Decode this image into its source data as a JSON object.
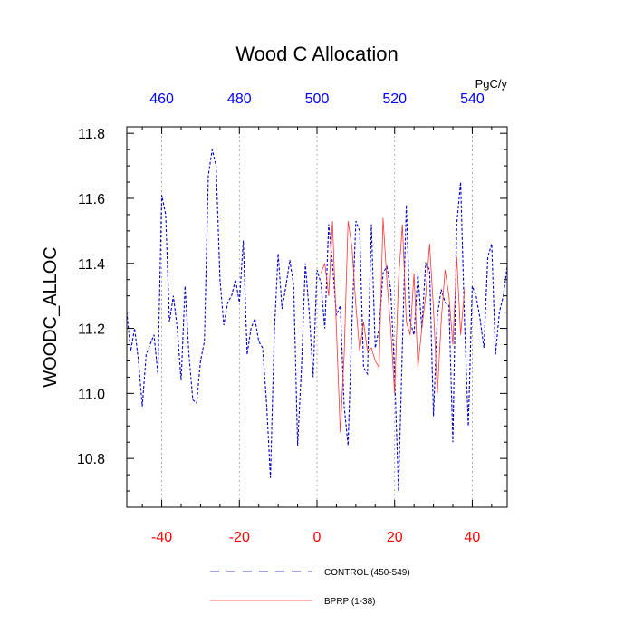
{
  "chart_data": {
    "type": "line",
    "title": "Wood C Allocation",
    "ylabel": "WOODC_ALLOC",
    "top_axis_units": "PgC/y",
    "xlim": [
      -49,
      49
    ],
    "ylim": [
      10.65,
      11.82
    ],
    "bottom_ticks": [
      -40,
      -20,
      0,
      20,
      40
    ],
    "top_ticks": [
      {
        "value": -40,
        "label": "460"
      },
      {
        "value": -20,
        "label": "480"
      },
      {
        "value": 0,
        "label": "500"
      },
      {
        "value": 20,
        "label": "520"
      },
      {
        "value": 40,
        "label": "540"
      }
    ],
    "y_ticks": [
      {
        "value": 10.8,
        "label": "10.8"
      },
      {
        "value": 11.0,
        "label": "11.0"
      },
      {
        "value": 11.2,
        "label": "11.2"
      },
      {
        "value": 11.4,
        "label": "11.4"
      },
      {
        "value": 11.6,
        "label": "11.6"
      },
      {
        "value": 11.8,
        "label": "11.8"
      }
    ],
    "vertical_grid": [
      -40,
      -20,
      0,
      20,
      40
    ],
    "bottom_tick_color": "#ff0000",
    "top_tick_color": "#0000ff",
    "series": [
      {
        "name": "CONTROL (450-549)",
        "color": "#0000cc",
        "dash": "3,2",
        "x": [
          -49,
          -48,
          -47,
          -46,
          -45,
          -44,
          -43,
          -42,
          -41,
          -40,
          -39,
          -38,
          -37,
          -36,
          -35,
          -34,
          -33,
          -32,
          -31,
          -30,
          -29,
          -28,
          -27,
          -26,
          -25,
          -24,
          -23,
          -22,
          -21,
          -20,
          -19,
          -18,
          -17,
          -16,
          -15,
          -14,
          -13,
          -12,
          -11,
          -10,
          -9,
          -8,
          -7,
          -6,
          -5,
          -4,
          -3,
          -2,
          -1,
          0,
          1,
          2,
          3,
          4,
          5,
          6,
          7,
          8,
          9,
          10,
          11,
          12,
          13,
          14,
          15,
          16,
          17,
          18,
          19,
          20,
          21,
          22,
          23,
          24,
          25,
          26,
          27,
          28,
          29,
          30,
          31,
          32,
          33,
          34,
          35,
          36,
          37,
          38,
          39,
          40,
          41,
          42,
          43,
          44,
          45,
          46,
          47,
          48,
          49
        ],
        "values": [
          11.25,
          11.13,
          11.2,
          11.1,
          10.96,
          11.12,
          11.15,
          11.18,
          11.06,
          11.61,
          11.55,
          11.22,
          11.3,
          11.2,
          11.04,
          11.33,
          11.12,
          10.98,
          10.97,
          11.1,
          11.16,
          11.67,
          11.75,
          11.7,
          11.35,
          11.21,
          11.28,
          11.3,
          11.35,
          11.28,
          11.47,
          11.12,
          11.2,
          11.23,
          11.16,
          11.14,
          10.97,
          10.74,
          11.19,
          11.43,
          11.26,
          11.33,
          11.41,
          11.33,
          10.84,
          11.08,
          11.4,
          11.25,
          11.05,
          11.38,
          11.34,
          11.2,
          11.52,
          11.4,
          11.24,
          11.27,
          10.96,
          10.84,
          11.22,
          11.53,
          11.5,
          11.08,
          11.06,
          11.52,
          11.14,
          11.2,
          11.37,
          11.39,
          11.32,
          11.06,
          10.7,
          11.15,
          11.58,
          11.22,
          11.18,
          11.37,
          11.2,
          11.4,
          11.38,
          10.93,
          11.24,
          11.32,
          11.28,
          11.27,
          10.85,
          11.52,
          11.65,
          11.22,
          10.9,
          11.33,
          11.3,
          11.23,
          11.14,
          11.42,
          11.46,
          11.12,
          11.25,
          11.3,
          11.39
        ]
      },
      {
        "name": "BPRP (1-38)",
        "color": "#ff3333",
        "dash": "",
        "x": [
          1,
          2,
          3,
          4,
          5,
          6,
          7,
          8,
          9,
          10,
          11,
          12,
          13,
          14,
          15,
          16,
          17,
          18,
          19,
          20,
          21,
          22,
          23,
          24,
          25,
          26,
          27,
          28,
          29,
          30,
          31,
          32,
          33,
          34,
          35,
          36,
          37,
          38
        ],
        "values": [
          11.37,
          11.4,
          11.3,
          11.53,
          11.2,
          10.88,
          11.12,
          11.53,
          11.45,
          11.27,
          11.13,
          11.22,
          11.13,
          11.14,
          11.1,
          11.08,
          11.54,
          11.35,
          11.2,
          11.0,
          11.35,
          11.52,
          11.22,
          11.18,
          11.37,
          11.08,
          11.2,
          11.3,
          11.46,
          11.26,
          11.0,
          11.22,
          11.38,
          11.3,
          11.15,
          11.42,
          11.18,
          11.32
        ]
      }
    ],
    "legend": [
      {
        "label": "CONTROL (450-549)"
      },
      {
        "label": "BPRP (1-38)"
      }
    ]
  }
}
